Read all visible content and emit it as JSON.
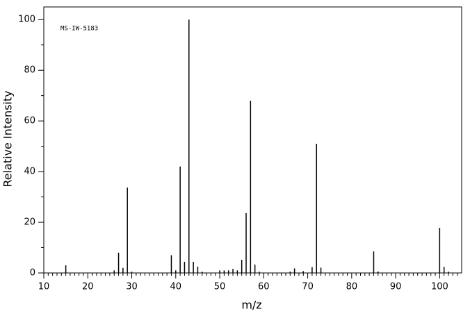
{
  "chart_data": {
    "type": "spectrum",
    "annotation": "MS-IW-5183",
    "xlabel": "m/z",
    "ylabel": "Relative Intensity",
    "color": "#000000",
    "x": [
      15,
      26,
      27,
      28,
      29,
      30,
      39,
      40,
      41,
      42,
      43,
      44,
      45,
      46,
      50,
      51,
      52,
      53,
      54,
      55,
      56,
      57,
      58,
      59,
      66,
      67,
      69,
      71,
      72,
      73,
      85,
      86,
      100,
      101,
      102
    ],
    "values": [
      3,
      1,
      8,
      2,
      33.7,
      0.5,
      7,
      1,
      42,
      4.4,
      100,
      4.4,
      2.5,
      0.5,
      1,
      1,
      1,
      1.6,
      1,
      5.2,
      23.6,
      68,
      3.3,
      0.5,
      0.5,
      1.8,
      0.7,
      2.3,
      51,
      2.1,
      8.5,
      0.6,
      17.8,
      2.4,
      0.5
    ],
    "xlim": [
      10,
      105
    ],
    "ylim": [
      0,
      105
    ],
    "xticks": [
      10,
      20,
      30,
      40,
      50,
      60,
      70,
      80,
      90,
      100
    ],
    "yticks": [
      0,
      20,
      40,
      60,
      80,
      100
    ]
  }
}
